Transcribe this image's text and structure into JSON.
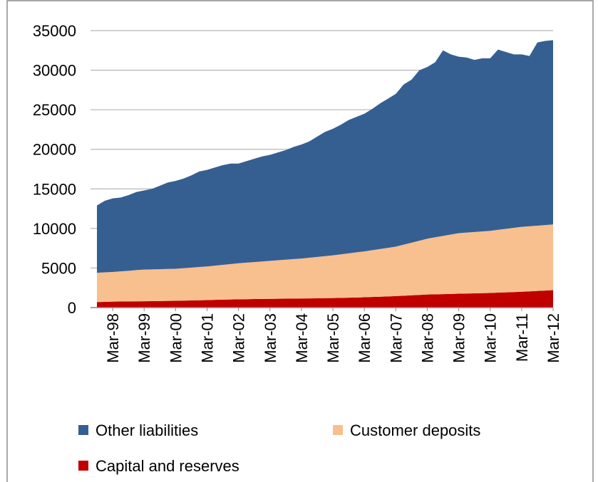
{
  "chart_data": {
    "type": "stacked-area",
    "categories": [
      null,
      null,
      "Mar-98",
      null,
      null,
      null,
      "Mar-99",
      null,
      null,
      null,
      "Mar-00",
      null,
      null,
      null,
      "Mar-01",
      null,
      null,
      null,
      "Mar-02",
      null,
      null,
      null,
      "Mar-03",
      null,
      null,
      null,
      "Mar-04",
      null,
      null,
      null,
      "Mar-05",
      null,
      null,
      null,
      "Mar-06",
      null,
      null,
      null,
      "Mar-07",
      null,
      null,
      null,
      "Mar-08",
      null,
      null,
      null,
      "Mar-09",
      null,
      null,
      null,
      "Mar-10",
      null,
      null,
      null,
      "Mar-11",
      null,
      null,
      null,
      "Mar-12"
    ],
    "series": [
      {
        "name": "Capital and reserves",
        "color": "#c00000",
        "values": [
          700,
          720,
          750,
          760,
          775,
          790,
          800,
          810,
          825,
          840,
          850,
          875,
          900,
          925,
          950,
          975,
          1000,
          1025,
          1050,
          1060,
          1075,
          1090,
          1100,
          1110,
          1125,
          1140,
          1150,
          1160,
          1175,
          1190,
          1200,
          1225,
          1250,
          1275,
          1300,
          1340,
          1375,
          1410,
          1450,
          1500,
          1550,
          1600,
          1650,
          1675,
          1700,
          1725,
          1750,
          1775,
          1800,
          1825,
          1850,
          1890,
          1925,
          1960,
          2000,
          2050,
          2100,
          2150,
          2200
        ]
      },
      {
        "name": "Customer deposits",
        "color": "#f8bf8f",
        "values": [
          3700,
          3730,
          3750,
          3820,
          3875,
          3940,
          4000,
          4010,
          4025,
          4040,
          4050,
          4105,
          4150,
          4205,
          4250,
          4325,
          4400,
          4475,
          4550,
          4620,
          4675,
          4740,
          4800,
          4870,
          4925,
          4990,
          5050,
          5140,
          5225,
          5310,
          5400,
          5505,
          5600,
          5705,
          5800,
          5910,
          6025,
          6140,
          6250,
          6450,
          6650,
          6850,
          7050,
          7205,
          7350,
          7505,
          7650,
          7705,
          7750,
          7805,
          7850,
          7940,
          8025,
          8120,
          8200,
          8230,
          8250,
          8280,
          8300
        ]
      },
      {
        "name": "Other liabilities",
        "color": "#355f91",
        "values": [
          8500,
          9050,
          9300,
          9320,
          9550,
          9870,
          10000,
          10180,
          10550,
          10920,
          11100,
          11320,
          11650,
          12070,
          12200,
          12400,
          12600,
          12700,
          12600,
          12820,
          13050,
          13270,
          13400,
          13620,
          13850,
          14170,
          14400,
          14700,
          15200,
          15700,
          16000,
          16370,
          16850,
          17120,
          17400,
          17850,
          18400,
          18850,
          19300,
          20250,
          20600,
          21550,
          21700,
          22120,
          23450,
          22770,
          22300,
          22120,
          21750,
          21870,
          21800,
          22770,
          22350,
          21920,
          21800,
          21520,
          23150,
          23270,
          23300
        ]
      }
    ],
    "ylim": [
      0,
      35000
    ],
    "yticks": [
      0,
      5000,
      10000,
      15000,
      20000,
      25000,
      30000,
      35000
    ],
    "grid": true
  }
}
